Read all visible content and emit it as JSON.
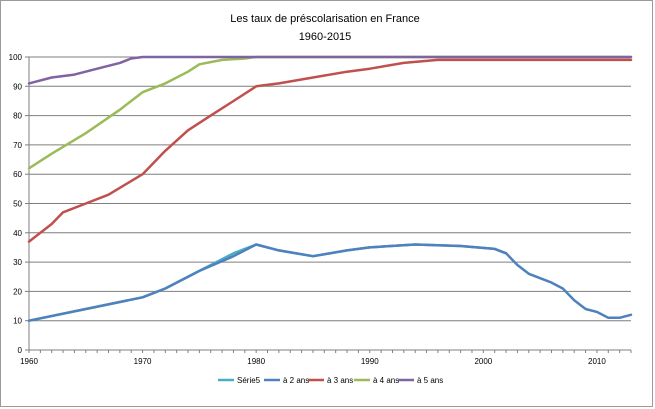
{
  "chart_data": {
    "type": "line",
    "title": "Les taux de préscolarisation en France",
    "subtitle": "1960-2015",
    "xlabel": "",
    "ylabel": "",
    "xlim": [
      1960,
      2013
    ],
    "ylim": [
      0,
      100
    ],
    "x_ticks": [
      1960,
      1970,
      1980,
      1990,
      2000,
      2010
    ],
    "y_ticks": [
      0,
      10,
      20,
      30,
      40,
      50,
      60,
      70,
      80,
      90,
      100
    ],
    "grid": "horizontal",
    "legend_position": "bottom",
    "series": [
      {
        "name": "Série5",
        "color": "#4bacc6",
        "points": [
          [
            1960,
            10
          ],
          [
            1965,
            14
          ],
          [
            1970,
            18
          ],
          [
            1972,
            21
          ],
          [
            1975,
            27
          ],
          [
            1978,
            33
          ],
          [
            1980,
            36
          ],
          [
            1982,
            34
          ],
          [
            1985,
            32
          ],
          [
            1988,
            34
          ],
          [
            1990,
            35
          ],
          [
            1994,
            36
          ],
          [
            1998,
            35.5
          ],
          [
            2001,
            34.5
          ],
          [
            2002,
            33
          ]
        ]
      },
      {
        "name": "à 2 ans",
        "color": "#4f81bd",
        "points": [
          [
            1960,
            10
          ],
          [
            1965,
            14
          ],
          [
            1970,
            18
          ],
          [
            1972,
            21
          ],
          [
            1975,
            27
          ],
          [
            1978,
            32
          ],
          [
            1980,
            36
          ],
          [
            1982,
            34
          ],
          [
            1985,
            32
          ],
          [
            1988,
            34
          ],
          [
            1990,
            35
          ],
          [
            1994,
            36
          ],
          [
            1998,
            35.5
          ],
          [
            2001,
            34.5
          ],
          [
            2002,
            33
          ],
          [
            2003,
            29
          ],
          [
            2004,
            26
          ],
          [
            2006,
            23
          ],
          [
            2007,
            21
          ],
          [
            2008,
            17
          ],
          [
            2009,
            14
          ],
          [
            2010,
            13
          ],
          [
            2011,
            11
          ],
          [
            2012,
            11
          ],
          [
            2013,
            12
          ]
        ]
      },
      {
        "name": "à 3 ans",
        "color": "#c0504d",
        "points": [
          [
            1960,
            37
          ],
          [
            1961,
            40
          ],
          [
            1962,
            43
          ],
          [
            1963,
            47
          ],
          [
            1965,
            50
          ],
          [
            1967,
            53
          ],
          [
            1970,
            60
          ],
          [
            1972,
            68
          ],
          [
            1974,
            75
          ],
          [
            1976,
            80
          ],
          [
            1978,
            85
          ],
          [
            1980,
            90
          ],
          [
            1982,
            91
          ],
          [
            1985,
            93
          ],
          [
            1988,
            95
          ],
          [
            1990,
            96
          ],
          [
            1993,
            98
          ],
          [
            1996,
            99
          ],
          [
            2000,
            99
          ],
          [
            2005,
            99
          ],
          [
            2013,
            99
          ]
        ]
      },
      {
        "name": "à 4 ans",
        "color": "#9bbb59",
        "points": [
          [
            1960,
            62
          ],
          [
            1962,
            67
          ],
          [
            1965,
            74
          ],
          [
            1968,
            82
          ],
          [
            1970,
            88
          ],
          [
            1972,
            91
          ],
          [
            1974,
            95
          ],
          [
            1975,
            97.5
          ],
          [
            1977,
            99
          ],
          [
            1979,
            99.5
          ],
          [
            1980,
            100
          ],
          [
            1990,
            100
          ],
          [
            2000,
            100
          ],
          [
            2013,
            100
          ]
        ]
      },
      {
        "name": "à 5 ans",
        "color": "#8064a2",
        "points": [
          [
            1960,
            91
          ],
          [
            1962,
            93
          ],
          [
            1964,
            94
          ],
          [
            1966,
            96
          ],
          [
            1968,
            98
          ],
          [
            1969,
            99.5
          ],
          [
            1970,
            100
          ],
          [
            1980,
            100
          ],
          [
            1990,
            100
          ],
          [
            2000,
            100
          ],
          [
            2013,
            100
          ]
        ]
      }
    ]
  }
}
